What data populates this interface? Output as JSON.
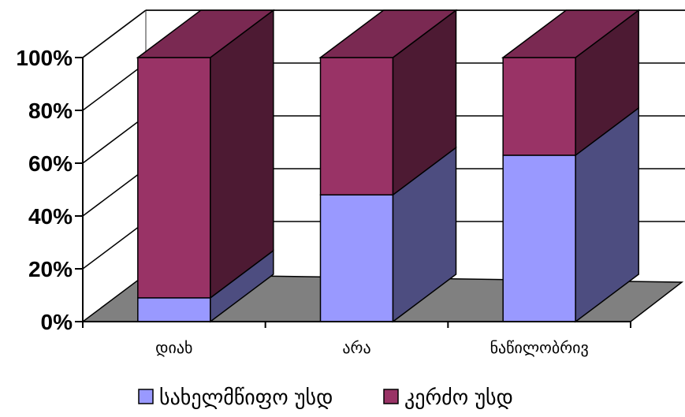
{
  "chart_data": {
    "type": "bar",
    "stacked": true,
    "three_d": true,
    "title": "",
    "xlabel": "",
    "ylabel": "",
    "ylim": [
      0,
      100
    ],
    "y_ticks": [
      "0%",
      "20%",
      "40%",
      "60%",
      "80%",
      "100%"
    ],
    "grid": true,
    "legend_position": "bottom",
    "categories": [
      "დიახ",
      "არა",
      "ნაწილობრივ"
    ],
    "series": [
      {
        "name": "სახელმწიფო უსდ",
        "values": [
          9,
          48,
          63
        ],
        "color": "#9999ff"
      },
      {
        "name": "კერძო უსდ",
        "values": [
          91,
          52,
          37
        ],
        "color": "#993366"
      }
    ],
    "colors": {
      "floor": "#808080",
      "wall": "#ffffff",
      "outline": "#000000"
    }
  }
}
